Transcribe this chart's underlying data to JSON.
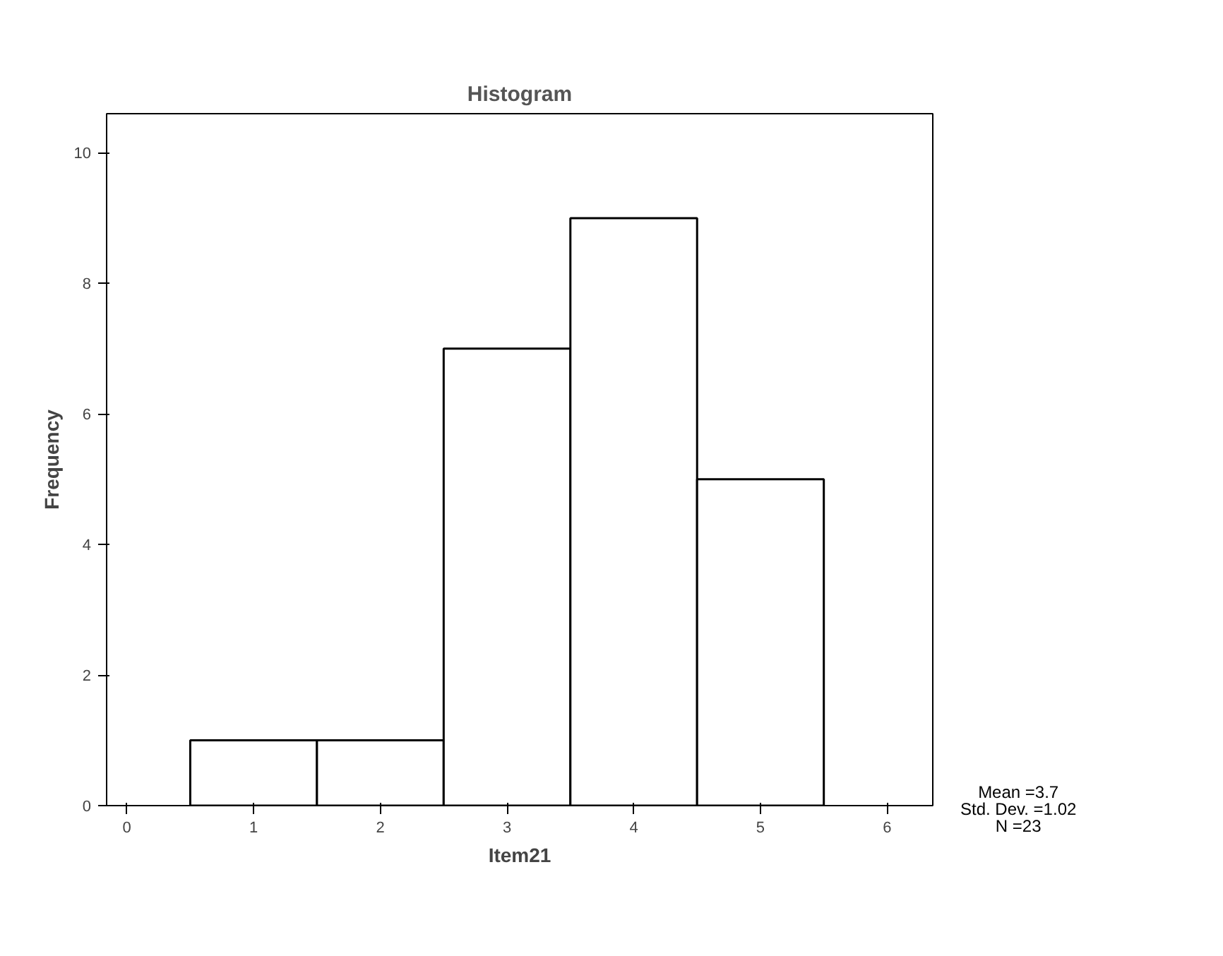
{
  "chart_data": {
    "type": "histogram",
    "title": "Histogram",
    "xlabel": "Item21",
    "ylabel": "Frequency",
    "bins": [
      0.5,
      1.5,
      2.5,
      3.5,
      4.5,
      5.5
    ],
    "values": [
      1,
      1,
      7,
      9,
      5
    ],
    "color": "#ffffff",
    "xlim": [
      -0.16,
      6.36
    ],
    "xticks": [
      0,
      1,
      2,
      3,
      4,
      5,
      6
    ],
    "ylim": [
      0,
      10.6
    ],
    "yticks": [
      0,
      2,
      4,
      6,
      8,
      10
    ],
    "grid": false,
    "annotations": [
      "Mean =3.7",
      "Std. Dev. =1.02",
      "N =23"
    ]
  }
}
